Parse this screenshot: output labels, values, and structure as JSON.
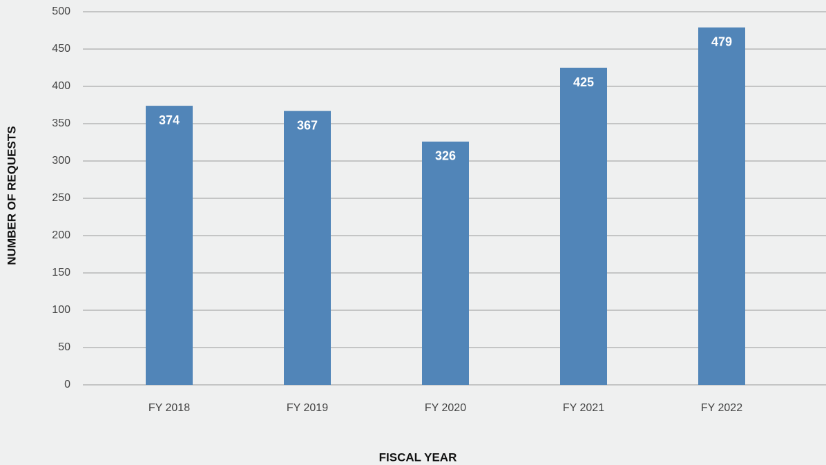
{
  "chart_data": {
    "type": "bar",
    "categories": [
      "FY 2018",
      "FY 2019",
      "FY 2020",
      "FY 2021",
      "FY 2022"
    ],
    "values": [
      374,
      367,
      326,
      425,
      479
    ],
    "color": "#5185b8",
    "xlabel": "FISCAL YEAR",
    "ylabel": "NUMBER OF REQUESTS",
    "ylim": [
      0,
      500
    ],
    "yticks": [
      0,
      50,
      100,
      150,
      200,
      250,
      300,
      350,
      400,
      450,
      500
    ],
    "grid": true
  }
}
